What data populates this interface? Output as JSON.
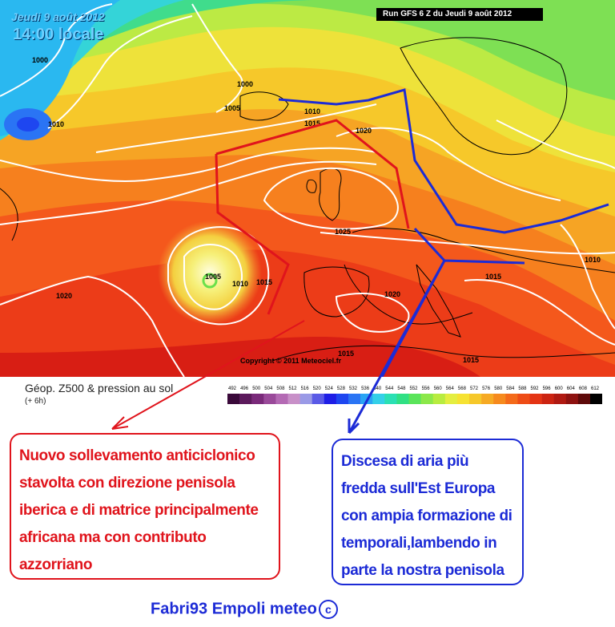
{
  "map": {
    "date": "Jeudi 9 août 2012",
    "time": "14:00 locale",
    "run": "Run GFS 6 Z du Jeudi 9 août 2012",
    "copyright": "Copyright © 2011 Meteociel.fr",
    "isobar_labels": [
      "1000",
      "1000",
      "1005",
      "1010",
      "1015",
      "1020",
      "1025",
      "1005",
      "1010",
      "1015",
      "1020",
      "1020",
      "1015",
      "1015",
      "1015",
      "1010",
      "1010"
    ]
  },
  "legend": {
    "title": "Géop. Z500 & pression au sol",
    "subtitle": "(+ 6h)",
    "scale_values": [
      "492",
      "496",
      "500",
      "504",
      "508",
      "512",
      "516",
      "520",
      "524",
      "528",
      "532",
      "536",
      "540",
      "544",
      "548",
      "552",
      "556",
      "560",
      "564",
      "568",
      "572",
      "576",
      "580",
      "584",
      "588",
      "592",
      "596",
      "600",
      "604",
      "608",
      "612"
    ],
    "scale_colors": [
      "#3a0a3a",
      "#5c1a5c",
      "#7a2a7a",
      "#9a4a9a",
      "#b46ab4",
      "#c890c8",
      "#9a9ae6",
      "#5a5ae6",
      "#1e1ee6",
      "#1e46f0",
      "#2a74f4",
      "#2aa4f4",
      "#34d0e8",
      "#2ae0b4",
      "#30e084",
      "#5ae45a",
      "#8ce84a",
      "#b8ec40",
      "#e4ee40",
      "#f6e232",
      "#f6c82a",
      "#f6aa24",
      "#f68a1e",
      "#f46a1a",
      "#ee4c16",
      "#e43414",
      "#cc2412",
      "#b01a12",
      "#8e1210",
      "#5e0a0a",
      "#000000"
    ]
  },
  "annotations": {
    "red_text": "Nuovo sollevamento anticiclonico stavolta con direzione penisola iberica e di matrice principalmente africana ma con contributo azzorriano",
    "blue_text": "Discesa di aria più fredda sull'Est Europa con ampia formazione di temporali,lambendo in parte la nostra penisola"
  },
  "signature": {
    "text": "Fabri93  Empoli meteo",
    "mark": "c"
  },
  "colors": {
    "red": "#e0141c",
    "blue": "#1c2bd6"
  }
}
